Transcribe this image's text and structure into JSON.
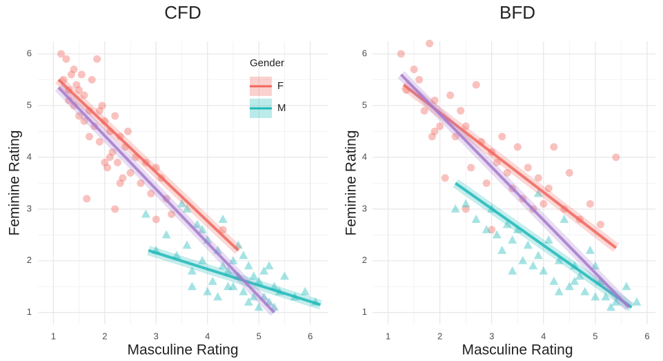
{
  "chart_data": [
    {
      "type": "scatter",
      "title": "CFD",
      "xlabel": "Masculine Rating",
      "ylabel": "Feminine Rating",
      "xlim": [
        0.7,
        6.34
      ],
      "ylim": [
        0.77,
        6.24
      ],
      "xticks": [
        1,
        2,
        3,
        4,
        5,
        6
      ],
      "yticks": [
        1,
        2,
        3,
        4,
        5,
        6
      ],
      "grid": true,
      "legend": {
        "title": "Gender",
        "position": "top-right"
      },
      "series": [
        {
          "name": "F",
          "color": "#f0665e",
          "marker": "circle",
          "x": [
            1.15,
            1.2,
            1.25,
            1.3,
            1.35,
            1.4,
            1.45,
            1.5,
            1.55,
            1.6,
            1.65,
            1.7,
            1.75,
            1.8,
            1.85,
            1.9,
            1.95,
            2.0,
            2.05,
            2.1,
            2.15,
            2.2,
            2.25,
            2.3,
            2.35,
            2.4,
            2.45,
            2.5,
            2.6,
            2.7,
            2.8,
            2.9,
            3.0,
            3.1,
            3.2,
            3.3,
            1.3,
            1.5,
            1.7,
            1.9,
            2.1,
            2.3,
            1.6,
            2.2,
            2.0,
            1.4,
            3.0,
            4.3
          ],
          "y": [
            6.0,
            5.5,
            5.9,
            5.3,
            5.6,
            5.0,
            5.4,
            4.8,
            5.6,
            5.2,
            3.2,
            4.9,
            5.5,
            4.6,
            5.9,
            4.3,
            5.0,
            4.7,
            3.8,
            4.5,
            4.1,
            4.8,
            3.9,
            4.4,
            3.6,
            4.2,
            4.5,
            3.7,
            4.0,
            3.5,
            3.9,
            3.3,
            3.8,
            3.6,
            3.2,
            2.9,
            5.1,
            5.3,
            4.4,
            4.9,
            4.0,
            3.5,
            4.7,
            3.0,
            3.9,
            5.7,
            2.8,
            2.6
          ]
        },
        {
          "name": "M",
          "color": "#1fb8b8",
          "marker": "triangle",
          "x": [
            2.8,
            3.0,
            3.2,
            3.4,
            3.5,
            3.6,
            3.7,
            3.8,
            3.9,
            4.0,
            4.1,
            4.2,
            4.3,
            4.4,
            4.5,
            4.6,
            4.7,
            4.8,
            4.9,
            5.0,
            5.1,
            5.2,
            5.3,
            5.4,
            5.5,
            5.7,
            5.9,
            6.1,
            3.7,
            3.9,
            4.2,
            4.4,
            4.6,
            4.8,
            5.0,
            5.2,
            4.5,
            4.7,
            4.9,
            5.1,
            3.6,
            4.0,
            4.3,
            5.3
          ],
          "y": [
            2.9,
            2.2,
            2.5,
            2.1,
            3.1,
            2.3,
            1.8,
            2.7,
            2.0,
            2.4,
            1.6,
            2.2,
            1.9,
            1.5,
            2.0,
            1.7,
            1.4,
            1.9,
            1.3,
            1.6,
            1.8,
            1.2,
            1.5,
            1.4,
            1.7,
            1.3,
            1.4,
            1.2,
            1.5,
            2.6,
            1.3,
            1.8,
            2.3,
            1.2,
            1.1,
            1.9,
            1.5,
            2.1,
            1.7,
            1.3,
            3.0,
            1.4,
            2.8,
            1.1
          ]
        }
      ],
      "fits": [
        {
          "color": "#f0665e",
          "x": [
            1.1,
            4.6
          ],
          "y": [
            5.5,
            2.2
          ]
        },
        {
          "color": "#1fb8b8",
          "x": [
            2.85,
            6.2
          ],
          "y": [
            2.2,
            1.15
          ]
        },
        {
          "color": "#a479cd",
          "x": [
            1.1,
            5.3
          ],
          "y": [
            5.35,
            1.0
          ]
        }
      ]
    },
    {
      "type": "scatter",
      "title": "BFD",
      "xlabel": "Masculine Rating",
      "ylabel": "Feminine Rating",
      "xlim": [
        0.7,
        6.16
      ],
      "ylim": [
        0.77,
        6.24
      ],
      "xticks": [
        1,
        2,
        3,
        4,
        5,
        6
      ],
      "yticks": [
        1,
        2,
        3,
        4,
        5,
        6
      ],
      "grid": true,
      "series": [
        {
          "color": "#f0665e",
          "marker": "circle",
          "x": [
            1.25,
            1.35,
            1.5,
            1.6,
            1.7,
            1.8,
            1.85,
            1.9,
            2.0,
            2.1,
            2.2,
            2.3,
            2.4,
            2.5,
            2.6,
            2.7,
            2.8,
            2.9,
            3.0,
            3.1,
            3.2,
            3.3,
            3.4,
            3.5,
            3.6,
            3.7,
            3.8,
            3.9,
            4.0,
            4.1,
            4.2,
            4.4,
            4.5,
            4.7,
            4.9,
            5.1,
            5.4,
            2.5,
            1.9,
            3.0
          ],
          "y": [
            6.0,
            5.3,
            5.7,
            5.5,
            4.9,
            6.2,
            4.4,
            5.1,
            4.6,
            3.6,
            5.2,
            4.4,
            4.9,
            4.6,
            3.8,
            5.4,
            4.3,
            3.5,
            4.1,
            3.9,
            4.4,
            3.7,
            3.4,
            4.2,
            3.2,
            3.8,
            3.0,
            3.6,
            3.1,
            3.4,
            4.2,
            3.0,
            3.7,
            2.8,
            3.1,
            2.7,
            4.0,
            3.0,
            4.5,
            2.6
          ]
        },
        {
          "color": "#1fb8b8",
          "marker": "triangle",
          "x": [
            2.3,
            2.5,
            2.7,
            2.9,
            3.0,
            3.1,
            3.2,
            3.3,
            3.4,
            3.5,
            3.6,
            3.7,
            3.8,
            3.9,
            4.0,
            4.1,
            4.2,
            4.3,
            4.4,
            4.5,
            4.6,
            4.7,
            4.8,
            4.9,
            5.0,
            5.1,
            5.2,
            5.4,
            5.6,
            5.8,
            3.4,
            3.9,
            4.3,
            4.6,
            5.0,
            5.3
          ],
          "y": [
            3.0,
            3.1,
            2.8,
            2.6,
            3.0,
            2.5,
            2.2,
            2.7,
            2.4,
            2.6,
            2.0,
            2.3,
            1.9,
            2.1,
            1.8,
            2.4,
            1.6,
            2.0,
            2.8,
            1.5,
            1.9,
            1.7,
            1.4,
            2.2,
            1.3,
            1.6,
            1.3,
            1.2,
            1.5,
            1.2,
            1.8,
            3.3,
            1.4,
            1.6,
            1.9,
            1.1
          ]
        }
      ],
      "fits": [
        {
          "color": "#f0665e",
          "x": [
            1.3,
            5.4
          ],
          "y": [
            5.4,
            2.25
          ]
        },
        {
          "color": "#1fb8b8",
          "x": [
            2.3,
            5.7
          ],
          "y": [
            3.5,
            1.1
          ]
        },
        {
          "color": "#a479cd",
          "x": [
            1.25,
            5.65
          ],
          "y": [
            5.6,
            1.1
          ]
        }
      ]
    }
  ]
}
